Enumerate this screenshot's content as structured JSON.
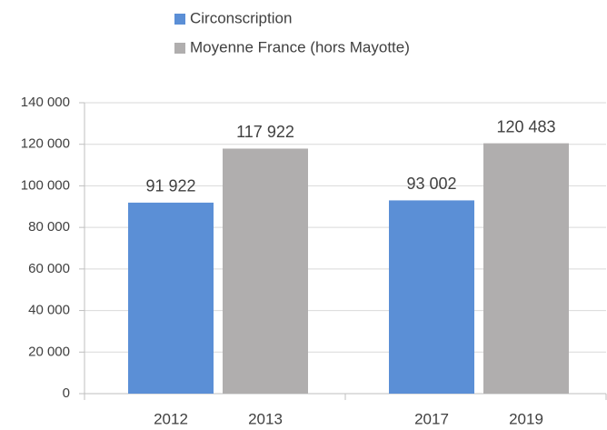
{
  "chart_data": {
    "type": "bar",
    "categories": [
      "2012",
      "2013",
      "2017",
      "2019"
    ],
    "series": [
      {
        "name": "Circonscription",
        "color": "#5b8fd6",
        "values": [
          91922,
          null,
          93002,
          null
        ],
        "value_labels": [
          "91 922",
          null,
          "93 002",
          null
        ]
      },
      {
        "name": "Moyenne France (hors Mayotte)",
        "color": "#b0aeae",
        "values": [
          null,
          117922,
          null,
          120483
        ],
        "value_labels": [
          null,
          "117 922",
          null,
          "120 483"
        ]
      }
    ],
    "ylim": [
      0,
      140000
    ],
    "yticks": [
      0,
      {
        "value": 20000,
        "label": "20 000"
      },
      {
        "value": 40000,
        "label": "40 000"
      },
      {
        "value": 60000,
        "label": "60 000"
      },
      {
        "value": 80000,
        "label": "80 000"
      },
      {
        "value": 100000,
        "label": "100 000"
      },
      {
        "value": 120000,
        "label": "120 000"
      },
      {
        "value": 140000,
        "label": "140 000"
      }
    ],
    "grid": true,
    "legend": "top"
  }
}
